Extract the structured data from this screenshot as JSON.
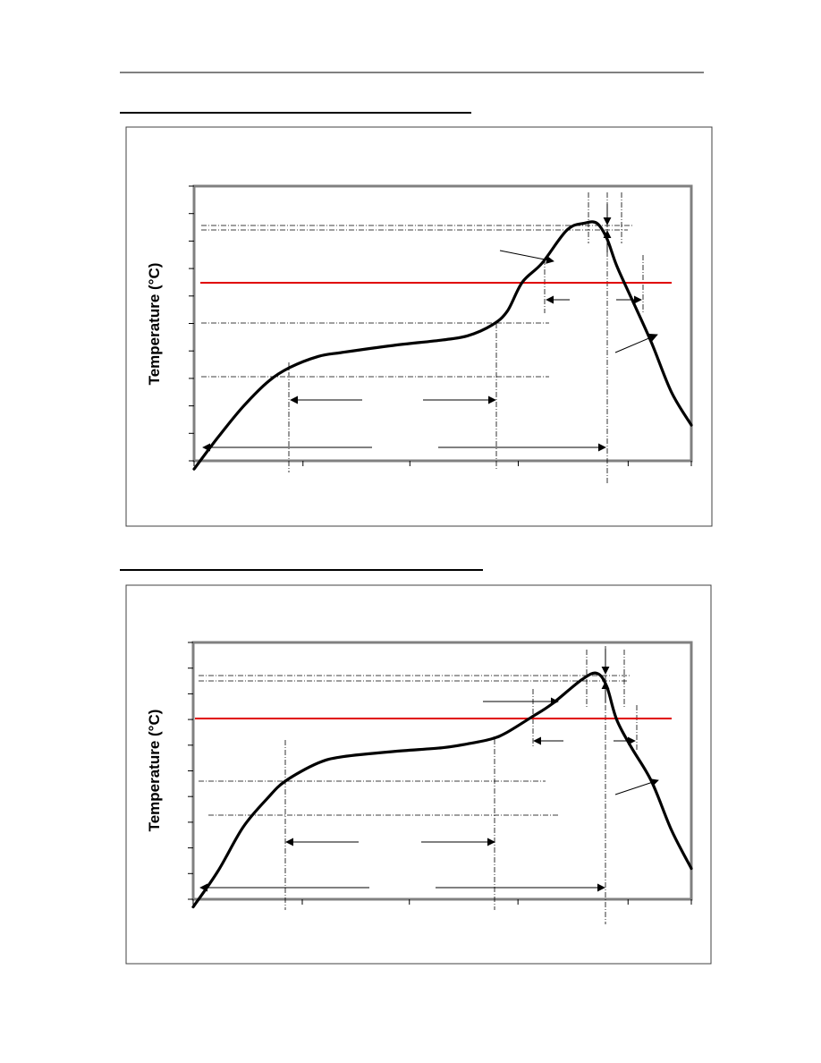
{
  "colors": {
    "curve": "#000000",
    "reference_line": "#e00000",
    "plot_border": "#808080",
    "panel_border": "#404040",
    "guide_lines": "#000000"
  },
  "chart_data": [
    {
      "type": "line",
      "ylabel": "Temperature (°C)",
      "xlabel": "",
      "title": "",
      "grid": false,
      "legend": "none",
      "xlim": [
        0,
        100
      ],
      "ylim": [
        0,
        10
      ],
      "x_ticks": [
        0,
        21.9,
        43.4,
        65.2,
        87.3,
        100
      ],
      "y_ticks": [
        0,
        1,
        2,
        3,
        4,
        5,
        6,
        7,
        8,
        9,
        10
      ],
      "series": [
        {
          "values_note": "",
          "x": [
            0,
            5,
            10,
            15,
            19.3,
            25,
            30,
            40,
            50,
            55,
            60,
            63,
            66,
            70,
            75,
            78.5,
            81,
            83,
            85,
            88,
            92,
            96,
            100
          ],
          "y": [
            -0.3,
            0.9,
            2.0,
            2.9,
            3.4,
            3.8,
            3.95,
            4.2,
            4.4,
            4.55,
            4.95,
            5.45,
            6.5,
            7.2,
            8.4,
            8.65,
            8.65,
            8.1,
            7.1,
            5.9,
            4.3,
            2.5,
            1.3
          ]
        }
      ],
      "reference_line_y": 6.5,
      "guide_levels_y": [
        8.5,
        8.4,
        4.9,
        2.9
      ]
    },
    {
      "type": "line",
      "ylabel": "Temperature (°C)",
      "xlabel": "",
      "title": "",
      "grid": false,
      "legend": "none",
      "xlim": [
        0,
        100
      ],
      "ylim": [
        0,
        10
      ],
      "x_ticks": [
        0,
        21.9,
        43.4,
        65.2,
        87.3,
        100
      ],
      "y_ticks": [
        0,
        1,
        2,
        3,
        4,
        5,
        6,
        7,
        8,
        9,
        10
      ],
      "series": [
        {
          "x": [
            0,
            5,
            10,
            15,
            18.5,
            25,
            30,
            40,
            50,
            55,
            60,
            63,
            68,
            72,
            78,
            81,
            83,
            85,
            88,
            92,
            96,
            100
          ],
          "y": [
            -0.3,
            1.1,
            2.8,
            3.95,
            4.6,
            5.3,
            5.55,
            5.75,
            5.9,
            6.05,
            6.25,
            6.5,
            7.1,
            7.6,
            8.55,
            8.8,
            8.3,
            7.0,
            5.9,
            4.6,
            2.7,
            1.2
          ]
        }
      ],
      "reference_line_y": 7.0,
      "guide_levels_y": [
        8.7,
        8.5,
        4.5,
        3.2
      ]
    }
  ]
}
